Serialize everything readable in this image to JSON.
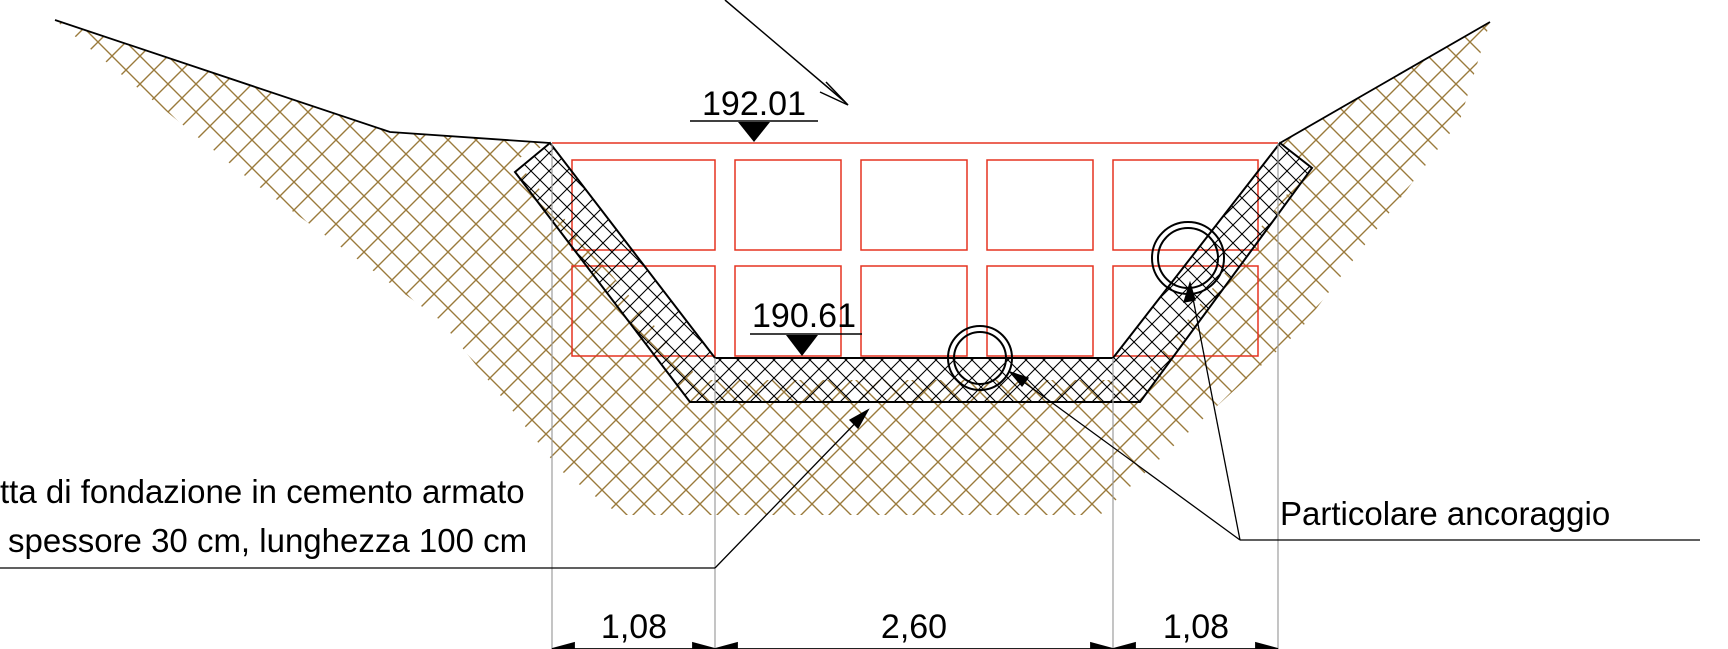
{
  "drawing": {
    "elevations": {
      "top": "192.01",
      "bottom": "190.61"
    },
    "notes": {
      "foundation_line1": "tta di fondazione in cemento armato",
      "foundation_line2": "spessore 30 cm, lunghezza 100 cm",
      "anchor_detail": "Particolare ancoraggio"
    },
    "dimensions": {
      "left": "1,08",
      "center": "2,60",
      "right": "1,08"
    },
    "colors": {
      "soil_hatch": "#9a7a3c",
      "gabion_grid": "#e53320",
      "concrete_outline": "#000000",
      "dimension_line": "#9e9e9e"
    }
  }
}
